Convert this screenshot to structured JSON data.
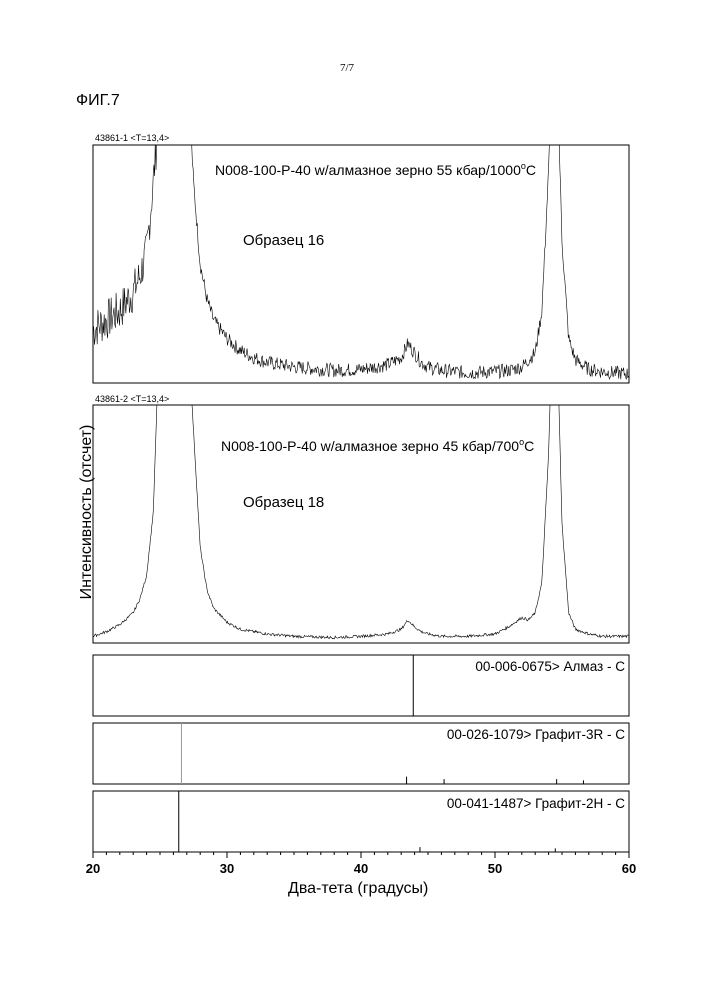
{
  "page_number": "7/7",
  "figure_label": "ФИГ.7",
  "chart_data": {
    "type": "line",
    "xlabel": "Два-тета (градусы)",
    "ylabel": "Интенсивность (отсчет)",
    "xlim": [
      20,
      60
    ],
    "xticks": [
      "20",
      "30",
      "40",
      "50",
      "60"
    ],
    "panels": [
      {
        "scan_label": "43861-1 <T=13,4>",
        "annotation_main": "N008-100-P-40 w/алмазное зерно 55 кбар/1000",
        "annotation_sup": "o",
        "annotation_end": "C",
        "sample": "Образец 16",
        "series": {
          "x": [
            20,
            21,
            22,
            23,
            23.5,
            24,
            24.5,
            25,
            25.5,
            26,
            26.5,
            27,
            27.5,
            28,
            28.5,
            29,
            30,
            31,
            32,
            33,
            35,
            38,
            40,
            42,
            43,
            43.5,
            44,
            44.5,
            45,
            46,
            48,
            50,
            51,
            52,
            53,
            53.5,
            54,
            54.3,
            54.6,
            55,
            55.5,
            56,
            57,
            58,
            59,
            60
          ],
          "y": [
            0.22,
            0.26,
            0.3,
            0.38,
            0.45,
            0.55,
            0.85,
            1.2,
            1.4,
            1.4,
            1.4,
            1.4,
            0.85,
            0.5,
            0.35,
            0.26,
            0.18,
            0.13,
            0.1,
            0.08,
            0.06,
            0.045,
            0.05,
            0.07,
            0.1,
            0.16,
            0.12,
            0.08,
            0.06,
            0.045,
            0.035,
            0.04,
            0.045,
            0.06,
            0.12,
            0.3,
            0.9,
            1.4,
            1.4,
            0.6,
            0.18,
            0.09,
            0.05,
            0.04,
            0.035,
            0.03
          ]
        }
      },
      {
        "scan_label": "43861-2 <T=13,4>",
        "annotation_main": "N008-100-P-40 w/алмазное зерно 45 кбар/700",
        "annotation_sup": "o",
        "annotation_end": "C",
        "sample": "Образец 18",
        "series": {
          "x": [
            20,
            21,
            22,
            23,
            23.5,
            24,
            24.5,
            25,
            25.5,
            26,
            26.5,
            27,
            27.5,
            28,
            28.5,
            29,
            30,
            31,
            32,
            33,
            35,
            38,
            40,
            42,
            43,
            43.5,
            44,
            44.5,
            45,
            46,
            48,
            50,
            51,
            51.5,
            52,
            52.5,
            53,
            53.5,
            54,
            54.3,
            54.6,
            55,
            55.5,
            56,
            57,
            58,
            59,
            60
          ],
          "y": [
            0.02,
            0.04,
            0.07,
            0.12,
            0.18,
            0.28,
            0.55,
            1.4,
            1.4,
            1.4,
            1.4,
            1.4,
            0.9,
            0.4,
            0.22,
            0.14,
            0.08,
            0.05,
            0.04,
            0.03,
            0.02,
            0.015,
            0.02,
            0.03,
            0.05,
            0.09,
            0.06,
            0.04,
            0.03,
            0.02,
            0.02,
            0.03,
            0.06,
            0.08,
            0.1,
            0.09,
            0.12,
            0.25,
            0.8,
            1.4,
            1.4,
            0.5,
            0.12,
            0.05,
            0.03,
            0.02,
            0.02,
            0.02
          ]
        }
      }
    ],
    "references": [
      {
        "label": "00-006-0675> Алмаз - C",
        "lines": [
          [
            43.9,
            1.0
          ]
        ]
      },
      {
        "label": "00-026-1079> Графит-3R - C",
        "lines": [
          [
            26.6,
            1.0
          ],
          [
            43.4,
            0.12
          ],
          [
            46.2,
            0.08
          ],
          [
            54.6,
            0.08
          ],
          [
            56.6,
            0.06
          ]
        ]
      },
      {
        "label": "00-041-1487> Графит-2H - C",
        "lines": [
          [
            26.4,
            1.0
          ],
          [
            44.4,
            0.08
          ],
          [
            54.5,
            0.06
          ]
        ]
      }
    ]
  }
}
